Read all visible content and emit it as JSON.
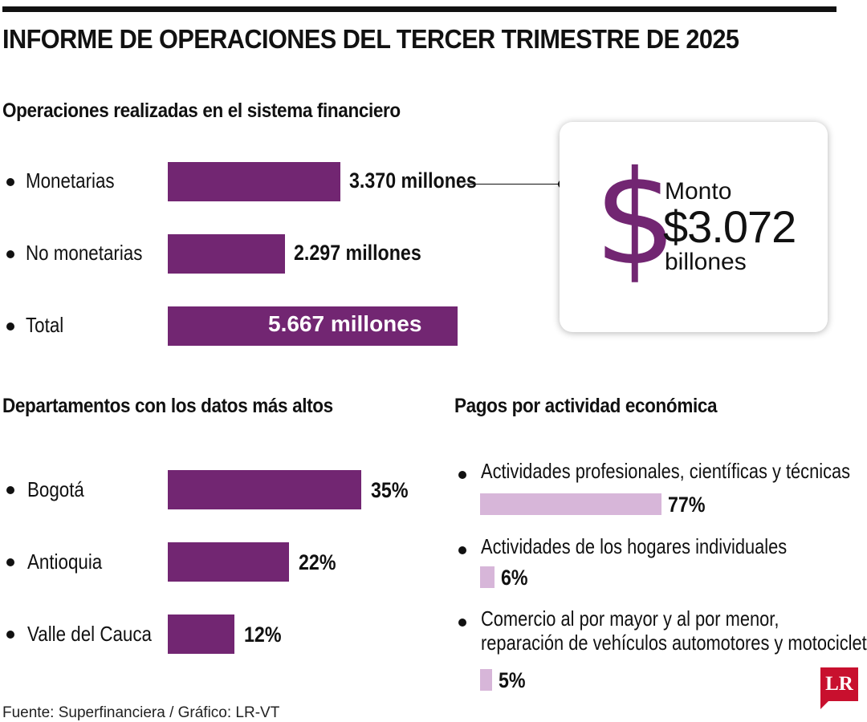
{
  "title": "INFORME DE OPERACIONES DEL TERCER TRIMESTRE DE 2025",
  "source": "Fuente: Superfinanciera / Gráfico: LR-VT",
  "logo": "LR",
  "colors": {
    "bar": "#722672",
    "bar_light": "#d7b6d9",
    "logo": "#c8102e"
  },
  "monto": {
    "label": "Monto",
    "value": "$3.072",
    "unit": "billones",
    "icon": "dollar-sign-icon"
  },
  "chart_data": [
    {
      "type": "bar",
      "title": "Operaciones realizadas en el sistema financiero",
      "categories": [
        "Monetarias",
        "No monetarias",
        "Total"
      ],
      "values": [
        3370,
        2297,
        5667
      ],
      "value_labels": [
        "3.370 millones",
        "2.297 millones",
        "5.667 millones"
      ],
      "unit": "millones"
    },
    {
      "type": "bar",
      "title": "Departamentos con los datos más altos",
      "categories": [
        "Bogotá",
        "Antioquia",
        "Valle del Cauca"
      ],
      "values": [
        35,
        22,
        12
      ],
      "value_labels": [
        "35%",
        "22%",
        "12%"
      ]
    },
    {
      "type": "bar",
      "title": "Pagos por actividad económica",
      "categories": [
        "Actividades profesionales, científicas y técnicas",
        "Actividades de los hogares individuales",
        "Comercio al por mayor y al por menor, reparación de vehículos automotores y motocicletas"
      ],
      "category_lines": [
        [
          "Actividades profesionales, científicas y técnicas"
        ],
        [
          "Actividades de los hogares individuales"
        ],
        [
          "Comercio al por mayor y al por menor,",
          "reparación de vehículos automotores y motocicletas"
        ]
      ],
      "values": [
        77,
        6,
        5
      ],
      "value_labels": [
        "77%",
        "6%",
        "5%"
      ]
    }
  ]
}
